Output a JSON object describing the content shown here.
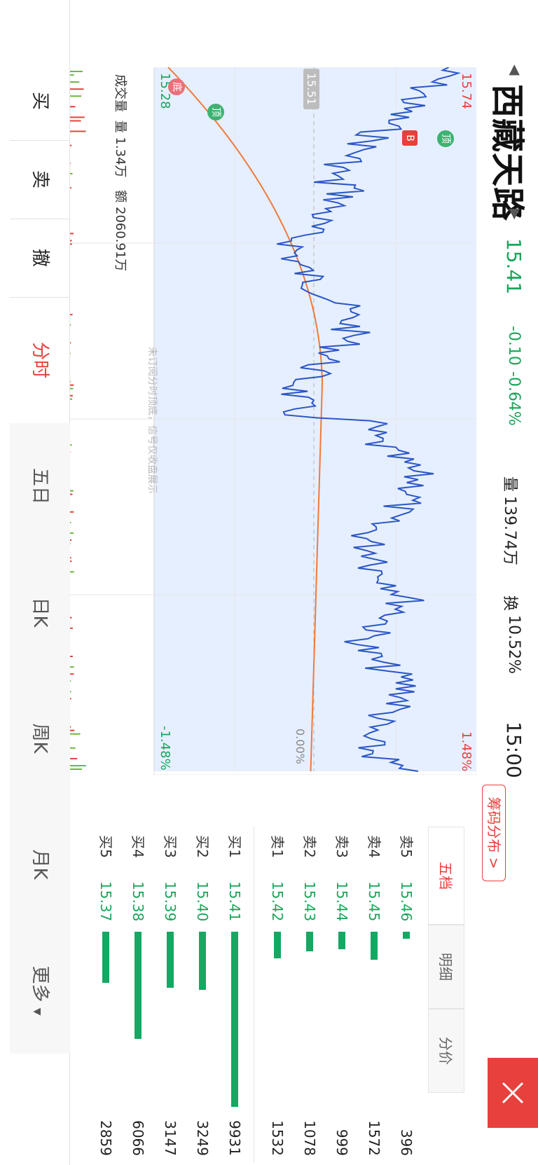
{
  "header": {
    "stock_name": "西藏天路",
    "price": "15.41",
    "change": "-0.10",
    "change_pct": "-0.64%",
    "volume_label": "量",
    "volume": "139.74万",
    "turnover_label": "换",
    "turnover": "10.52%",
    "time": "15:00"
  },
  "chart": {
    "y_high": "15.74",
    "y_low": "15.28",
    "pct_high": "1.48%",
    "pct_low": "-1.48%",
    "avg_label": "15.51",
    "zero_pct": "0.00%",
    "volume_info_label": "成交量",
    "volume_info_value": "量 1.34万",
    "amount_info": "额 2060.91万",
    "watermark": "未订阅分时顶底，信号仅收盘展示",
    "marker_top1": "顶",
    "marker_top2": "顶",
    "marker_bottom": "底",
    "marker_buy": "B"
  },
  "chip_button": "筹码分布 >",
  "panel_tabs": [
    "五档",
    "明细",
    "分价"
  ],
  "order_book": {
    "asks": [
      {
        "label": "卖5",
        "price": "15.46",
        "volume": "396",
        "frac": 0.04
      },
      {
        "label": "卖4",
        "price": "15.45",
        "volume": "1572",
        "frac": 0.16
      },
      {
        "label": "卖3",
        "price": "15.44",
        "volume": "999",
        "frac": 0.1
      },
      {
        "label": "卖2",
        "price": "15.43",
        "volume": "1078",
        "frac": 0.11
      },
      {
        "label": "卖1",
        "price": "15.42",
        "volume": "1532",
        "frac": 0.15
      }
    ],
    "bids": [
      {
        "label": "买1",
        "price": "15.41",
        "volume": "9931",
        "frac": 1.0
      },
      {
        "label": "买2",
        "price": "15.40",
        "volume": "3249",
        "frac": 0.33
      },
      {
        "label": "买3",
        "price": "15.39",
        "volume": "3147",
        "frac": 0.32
      },
      {
        "label": "买4",
        "price": "15.38",
        "volume": "6066",
        "frac": 0.61
      },
      {
        "label": "买5",
        "price": "15.37",
        "volume": "2859",
        "frac": 0.29
      }
    ]
  },
  "bottom_nav": [
    "买",
    "卖",
    "撤",
    "分时",
    "五日",
    "日K",
    "周K",
    "月K",
    "更多"
  ],
  "colors": {
    "red": "#e8403c",
    "green": "#19a55a",
    "blue": "#2a56c6",
    "orange": "#f07a3a"
  }
}
